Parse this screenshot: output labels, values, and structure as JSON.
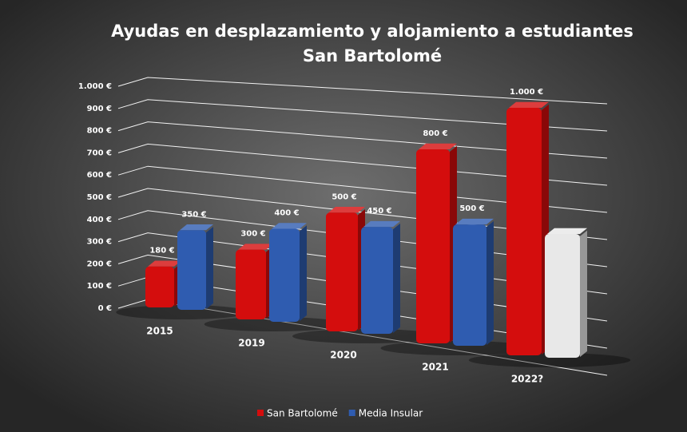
{
  "chart_data": {
    "type": "bar3d",
    "title_lines": [
      "Ayudas en desplazamiento y alojamiento a estudiantes",
      "San Bartolomé"
    ],
    "categories": [
      "2015",
      "2019",
      "2020",
      "2021",
      "2022?"
    ],
    "series": [
      {
        "name": "San Bartolomé",
        "color": "#d40d0d",
        "values": [
          180,
          300,
          500,
          800,
          1000
        ],
        "value_labels": [
          "180 €",
          "300 €",
          "500 €",
          "800 €",
          "1.000 €"
        ]
      },
      {
        "name": "Media Insular",
        "color": "#2f5cb0",
        "values": [
          350,
          400,
          450,
          500,
          500
        ],
        "value_labels": [
          "350 €",
          "400 €",
          "450 €",
          "500 €",
          null
        ],
        "colors": [
          "#2f5cb0",
          "#2f5cb0",
          "#2f5cb0",
          "#2f5cb0",
          "#e8e8e8"
        ]
      }
    ],
    "ylim": [
      0,
      1000
    ],
    "yticks": [
      {
        "value": 0,
        "label": "0 €"
      },
      {
        "value": 100,
        "label": "100 €"
      },
      {
        "value": 200,
        "label": "200 €"
      },
      {
        "value": 300,
        "label": "300 €"
      },
      {
        "value": 400,
        "label": "400 €"
      },
      {
        "value": 500,
        "label": "500 €"
      },
      {
        "value": 600,
        "label": "600 €"
      },
      {
        "value": 700,
        "label": "700 €"
      },
      {
        "value": 800,
        "label": "800 €"
      },
      {
        "value": 900,
        "label": "900 €"
      },
      {
        "value": 1000,
        "label": "1.000 €"
      }
    ],
    "grid": true
  }
}
